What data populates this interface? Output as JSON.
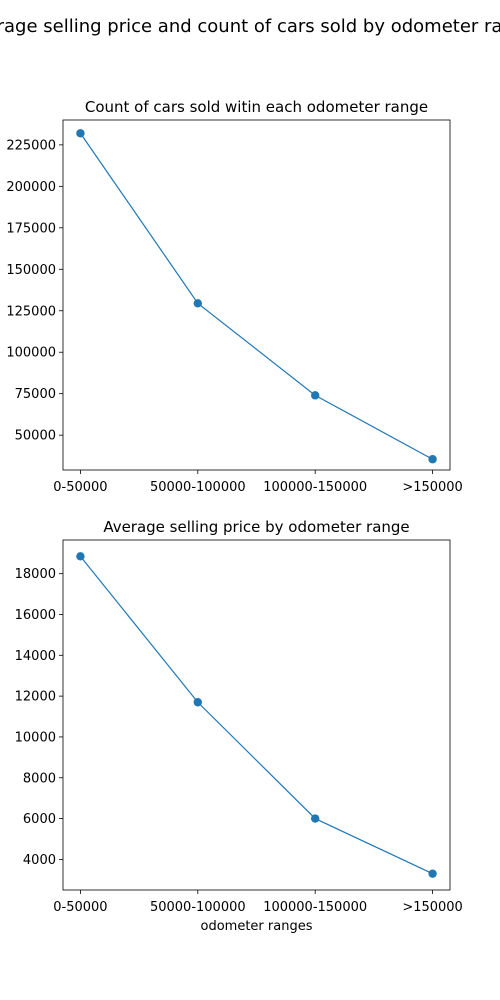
{
  "suptitle": "Average selling price and count of cars sold by odometer range",
  "chart_data": [
    {
      "type": "line",
      "title": "Count of cars sold witin each odometer range",
      "xlabel": "",
      "ylabel": "",
      "categories": [
        "0-50000",
        "50000-100000",
        "100000-150000",
        ">150000"
      ],
      "values": [
        232000,
        129500,
        74000,
        35500
      ],
      "ylim": [
        29000,
        240000
      ],
      "yticks": [
        50000,
        75000,
        100000,
        125000,
        150000,
        175000,
        200000,
        225000
      ],
      "color": "#1f77b4",
      "grid": false,
      "marker": "circle"
    },
    {
      "type": "line",
      "title": "Average selling price by odometer range",
      "xlabel": "odometer ranges",
      "ylabel": "",
      "categories": [
        "0-50000",
        "50000-100000",
        "100000-150000",
        ">150000"
      ],
      "values": [
        18850,
        11700,
        6000,
        3300
      ],
      "ylim": [
        2500,
        19650
      ],
      "yticks": [
        4000,
        6000,
        8000,
        10000,
        12000,
        14000,
        16000,
        18000
      ],
      "color": "#1f77b4",
      "grid": false,
      "marker": "circle"
    }
  ]
}
